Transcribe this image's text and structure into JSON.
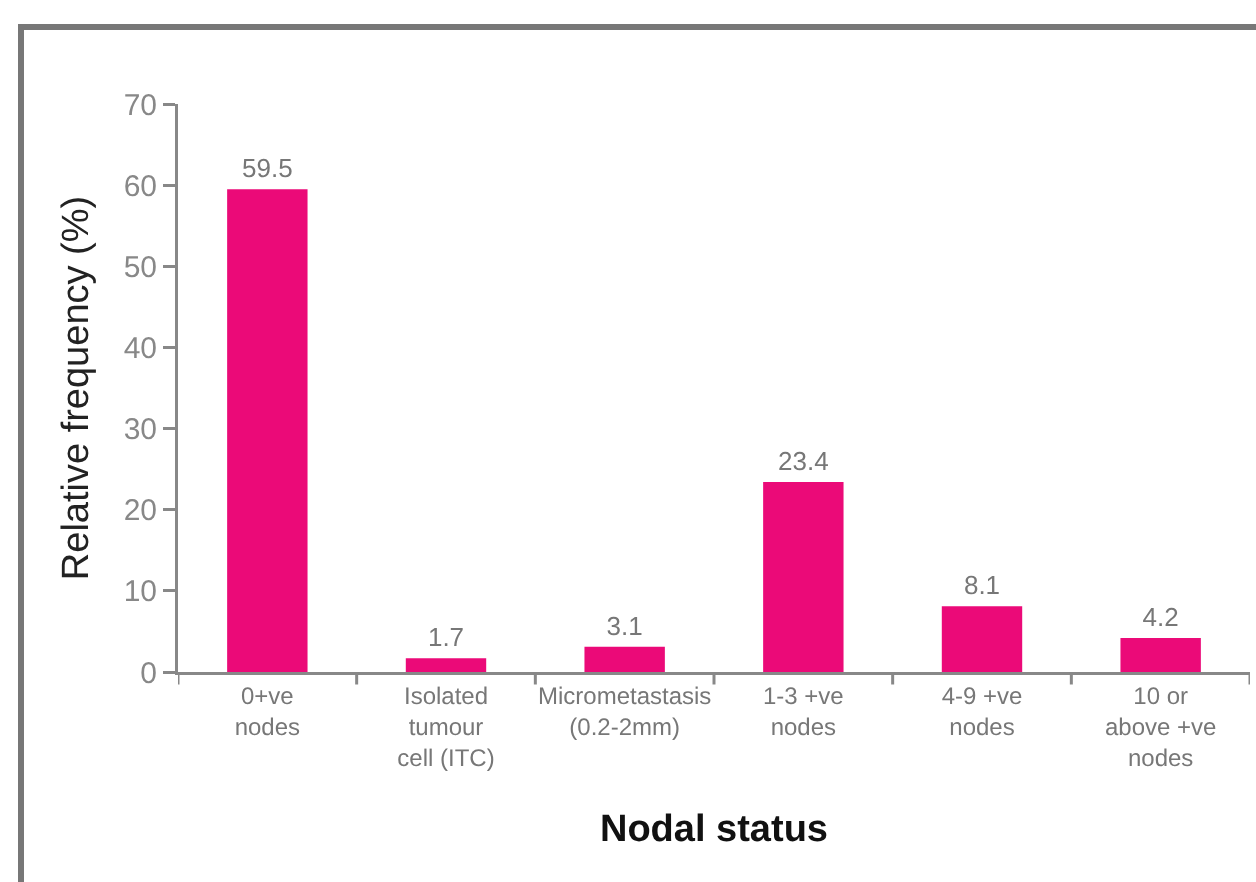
{
  "chart_data": {
    "type": "bar",
    "xlabel": "Nodal status",
    "ylabel": "Relative frequency (%)",
    "categories": [
      "0+ve nodes",
      "Isolated tumour cell (ITC)",
      "Micrometastasis (0.2-2mm)",
      "1-3 +ve nodes",
      "4-9 +ve nodes",
      "10 or above +ve nodes"
    ],
    "values": [
      59.5,
      1.7,
      3.1,
      23.4,
      8.1,
      4.2
    ],
    "color": "#eb0a78",
    "ylim": [
      0,
      70
    ],
    "yticks": [
      0,
      10,
      20,
      30,
      40,
      50,
      60,
      70
    ],
    "data_labels": true
  }
}
